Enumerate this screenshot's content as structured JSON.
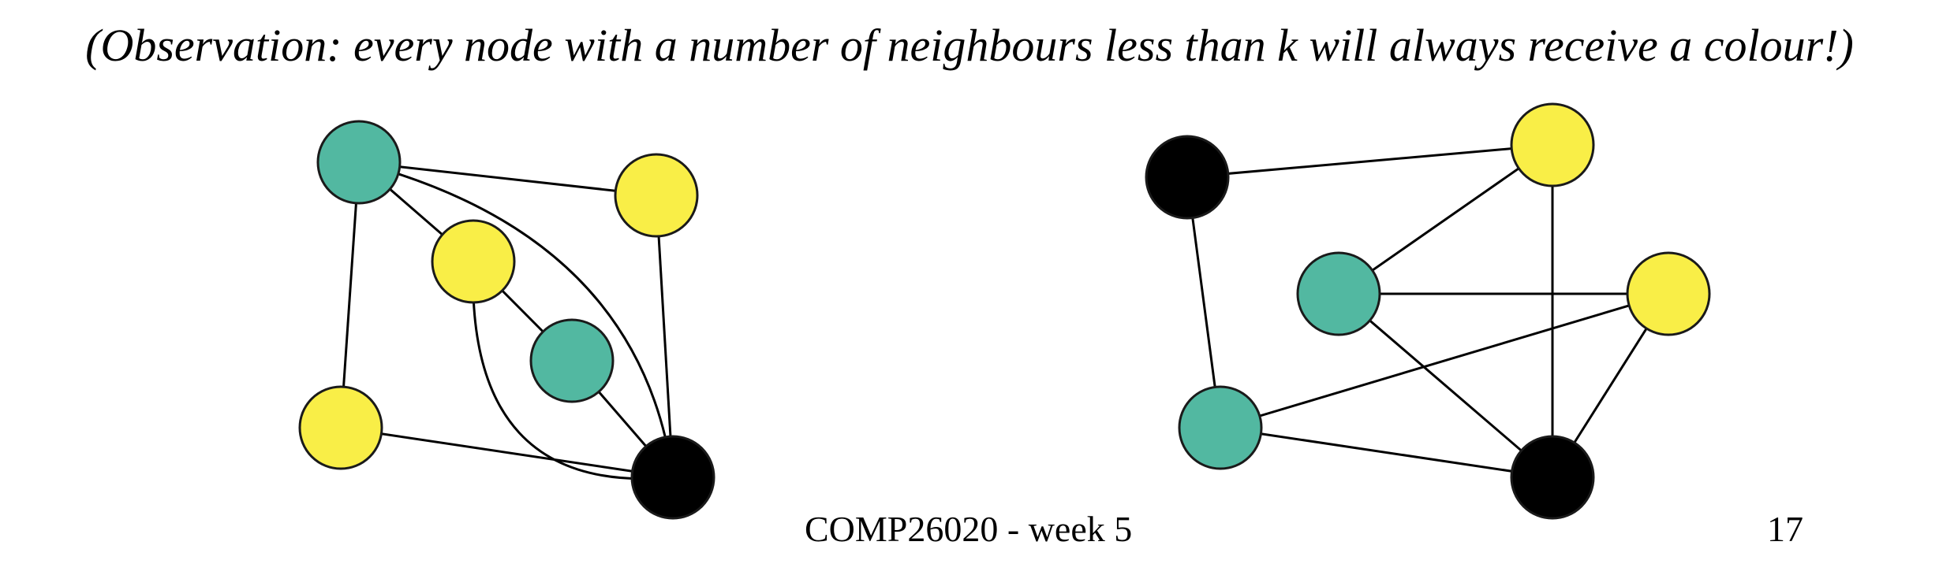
{
  "observation_text": "(Observation: every node with a number of neighbours less than k will always receive a colour!)",
  "footer": {
    "course": "COMP26020 - week 5",
    "page_number": "17"
  },
  "colors": {
    "teal": "#52b8a1",
    "yellow": "#f9ee47",
    "black": "#000000"
  },
  "graphs": [
    {
      "name": "left-graph",
      "nodes": [
        {
          "id": "L1",
          "color": "teal"
        },
        {
          "id": "L2",
          "color": "yellow"
        },
        {
          "id": "L3",
          "color": "yellow"
        },
        {
          "id": "L4",
          "color": "teal"
        },
        {
          "id": "L5",
          "color": "yellow"
        },
        {
          "id": "L6",
          "color": "black"
        }
      ],
      "edges": [
        [
          "L1",
          "L2"
        ],
        [
          "L1",
          "L3"
        ],
        [
          "L1",
          "L5"
        ],
        [
          "L1",
          "L6"
        ],
        [
          "L2",
          "L6"
        ],
        [
          "L3",
          "L4"
        ],
        [
          "L3",
          "L6"
        ],
        [
          "L4",
          "L6"
        ],
        [
          "L5",
          "L6"
        ]
      ]
    },
    {
      "name": "right-graph",
      "nodes": [
        {
          "id": "R1",
          "color": "black"
        },
        {
          "id": "R2",
          "color": "yellow"
        },
        {
          "id": "R3",
          "color": "teal"
        },
        {
          "id": "R4",
          "color": "yellow"
        },
        {
          "id": "R5",
          "color": "teal"
        },
        {
          "id": "R6",
          "color": "black"
        }
      ],
      "edges": [
        [
          "R1",
          "R2"
        ],
        [
          "R1",
          "R5"
        ],
        [
          "R2",
          "R3"
        ],
        [
          "R2",
          "R6"
        ],
        [
          "R3",
          "R4"
        ],
        [
          "R3",
          "R6"
        ],
        [
          "R5",
          "R4"
        ],
        [
          "R5",
          "R6"
        ],
        [
          "R4",
          "R6"
        ]
      ]
    }
  ]
}
